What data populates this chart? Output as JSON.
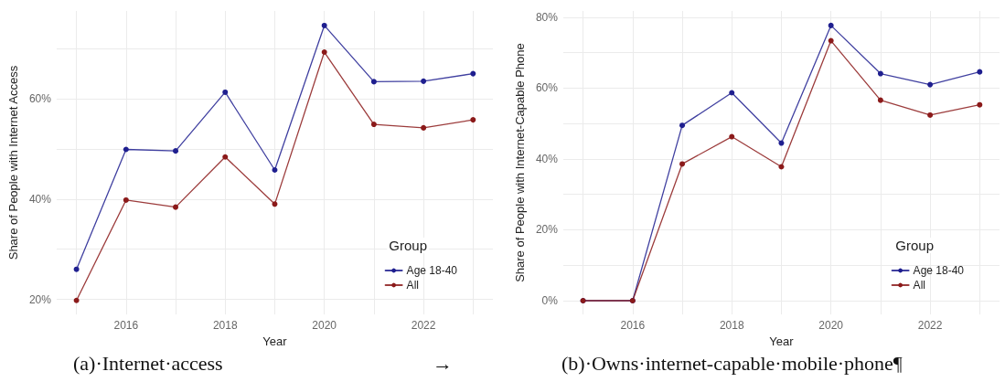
{
  "chart_data": [
    {
      "type": "line",
      "xlabel": "Year",
      "ylabel": "Share of People with Internet Access",
      "legend_title": "Group",
      "legend": "bottom right",
      "grid": true,
      "marker": "circle",
      "line_style": "solid",
      "x": [
        2015,
        2016,
        2017,
        2018,
        2019,
        2020,
        2021,
        2022,
        2023
      ],
      "xlim": [
        2014.6,
        2023.4
      ],
      "xticks": [
        {
          "value": 2015,
          "label": null
        },
        2016,
        {
          "value": 2017,
          "label": null
        },
        2018,
        {
          "value": 2019,
          "label": null
        },
        2020,
        {
          "value": 2021,
          "label": null
        },
        2022,
        {
          "value": 2023,
          "label": null
        }
      ],
      "ylim": [
        17,
        77.5
      ],
      "yticks": [
        {
          "value": 20,
          "label": "20%"
        },
        {
          "value": 30,
          "label": null
        },
        {
          "value": 40,
          "label": "40%"
        },
        {
          "value": 50,
          "label": null
        },
        {
          "value": 60,
          "label": "60%"
        },
        {
          "value": 70,
          "label": null
        }
      ],
      "series": [
        {
          "name": "Age 18-40",
          "color": "#1f1f8f",
          "values": [
            26.0,
            49.9,
            49.6,
            61.3,
            45.8,
            74.6,
            63.4,
            63.5,
            65.0
          ]
        },
        {
          "name": "All",
          "color": "#8b1a1a",
          "values": [
            19.8,
            39.8,
            38.4,
            48.4,
            39.0,
            69.3,
            54.9,
            54.2,
            55.8
          ]
        }
      ],
      "annotations": [
        "(a)·Internet·access",
        "→"
      ]
    },
    {
      "type": "line",
      "xlabel": "Year",
      "ylabel": "Share of People with Internet-Capable Phone",
      "legend_title": "Group",
      "legend": "bottom right",
      "grid": true,
      "marker": "circle",
      "line_style": "solid",
      "x": [
        2015,
        2016,
        2017,
        2018,
        2019,
        2020,
        2021,
        2022,
        2023
      ],
      "xlim": [
        2014.6,
        2023.4
      ],
      "xticks": [
        {
          "value": 2015,
          "label": null
        },
        2016,
        {
          "value": 2017,
          "label": null
        },
        2018,
        {
          "value": 2019,
          "label": null
        },
        2020,
        {
          "value": 2021,
          "label": null
        },
        2022,
        {
          "value": 2023,
          "label": null
        }
      ],
      "ylim": [
        -3.9,
        81.8
      ],
      "yticks": [
        {
          "value": 0,
          "label": "0%"
        },
        {
          "value": 10,
          "label": null
        },
        {
          "value": 20,
          "label": "20%"
        },
        {
          "value": 30,
          "label": null
        },
        {
          "value": 40,
          "label": "40%"
        },
        {
          "value": 50,
          "label": null
        },
        {
          "value": 60,
          "label": "60%"
        },
        {
          "value": 70,
          "label": null
        },
        {
          "value": 80,
          "label": "80%"
        }
      ],
      "series": [
        {
          "name": "Age 18-40",
          "color": "#1f1f8f",
          "values": [
            0,
            0,
            49.5,
            58.7,
            44.5,
            77.7,
            64.1,
            61.0,
            64.6
          ]
        },
        {
          "name": "All",
          "color": "#8b1a1a",
          "values": [
            0,
            0,
            38.6,
            46.3,
            37.8,
            73.4,
            56.6,
            52.4,
            55.3
          ]
        }
      ],
      "annotations": [
        "(b)·Owns·internet-capable·mobile·phone¶"
      ]
    }
  ]
}
